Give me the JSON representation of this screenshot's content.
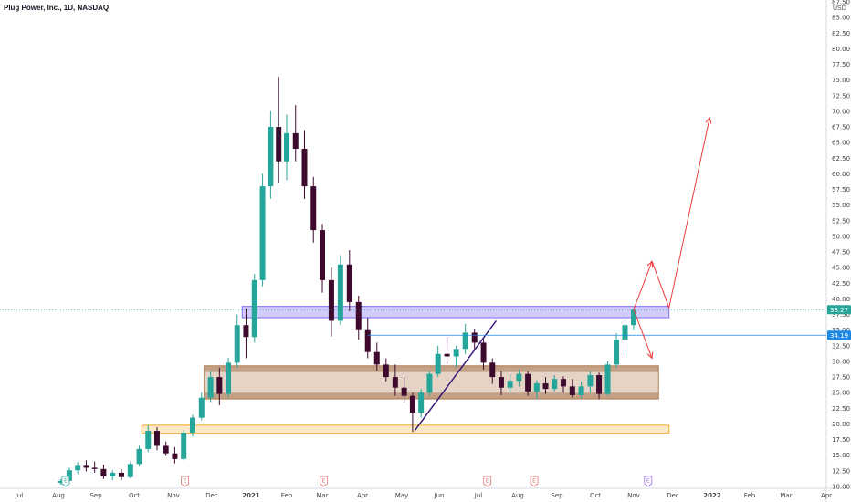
{
  "header": {
    "title": "Plug Power, Inc., 1D, NASDAQ",
    "currency": "USD"
  },
  "colors": {
    "up": "#26a69a",
    "down": "#3d0a2e",
    "axis_text": "#444444",
    "box_upper": "#7b6cf6",
    "box_mid": "#b5835a",
    "box_low": "#f5a623",
    "trend_line": "#3a1a78",
    "projection": "#ef3b3b",
    "price_line_last": "#1e88e5"
  },
  "chart_data": {
    "type": "candlestick",
    "title": "Plug Power, Inc., 1D, NASDAQ",
    "ylim": [
      10.0,
      87.5
    ],
    "y_ticks": [
      "87.50",
      "85.00",
      "82.50",
      "80.00",
      "77.50",
      "75.00",
      "72.50",
      "70.00",
      "67.50",
      "65.00",
      "62.50",
      "60.00",
      "57.50",
      "55.00",
      "52.50",
      "50.00",
      "47.50",
      "45.00",
      "42.50",
      "40.00",
      "37.50",
      "35.00",
      "32.50",
      "30.00",
      "27.50",
      "25.00",
      "22.50",
      "20.00",
      "17.50",
      "15.00",
      "12.50",
      "10.00"
    ],
    "x_ticks": [
      "Jul",
      "Aug",
      "Sep",
      "Oct",
      "Nov",
      "Dec",
      "2021",
      "Feb",
      "Mar",
      "Apr",
      "May",
      "Jun",
      "Jul",
      "Aug",
      "Sep",
      "Oct",
      "Nov",
      "Dec",
      "2022",
      "Feb",
      "Mar",
      "Apr"
    ],
    "x_tick_index": [
      0,
      1,
      2,
      3,
      4,
      5,
      6,
      7,
      8,
      9,
      10,
      11,
      12,
      13,
      14,
      15,
      16,
      17,
      18,
      19,
      20,
      21
    ],
    "price_labels": [
      {
        "text": "38.27",
        "value": 38.27,
        "color": "#26a69a"
      },
      {
        "text": "34.19",
        "value": 34.19,
        "color": "#1e88e5"
      }
    ],
    "zones": [
      {
        "name": "resistance-zone",
        "from": "2020-12-25",
        "to": "2021-11-28",
        "low": 37.0,
        "high": 38.8
      },
      {
        "name": "consolidation-zone",
        "from": "2020-11-25",
        "to": "2021-11-20",
        "low": 24.0,
        "high": 29.3
      },
      {
        "name": "support-zone",
        "from": "2020-10-07",
        "to": "2021-11-28",
        "low": 18.5,
        "high": 19.8
      }
    ],
    "trendline": {
      "from_date": "2021-05-12",
      "from_value": 19.0,
      "to_date": "2021-07-15",
      "to_value": 36.5
    },
    "projection": [
      {
        "date": "2021-11-01",
        "value": 38.3
      },
      {
        "date": "2021-11-15",
        "value": 46.0
      },
      {
        "date": "2021-11-28",
        "value": 38.6
      },
      {
        "date": "2021-12-30",
        "value": 69.0
      }
    ],
    "projection_down": [
      {
        "date": "2021-11-01",
        "value": 38.3
      },
      {
        "date": "2021-11-15",
        "value": 30.5
      }
    ],
    "events": [
      {
        "date": "2020-08-07",
        "label": "E",
        "kind": "earnings-past"
      },
      {
        "date": "2020-11-10",
        "label": "E",
        "kind": "earnings"
      },
      {
        "date": "2021-03-02",
        "label": "E",
        "kind": "earnings"
      },
      {
        "date": "2021-07-08",
        "label": "E",
        "kind": "earnings"
      },
      {
        "date": "2021-08-14",
        "label": "E",
        "kind": "earnings"
      },
      {
        "date": "2021-11-12",
        "label": "E",
        "kind": "earnings-future"
      }
    ],
    "series": [
      {
        "date": "2020-08-03",
        "open": 10.6,
        "high": 11.2,
        "low": 10.3,
        "close": 10.9
      },
      {
        "date": "2020-08-10",
        "open": 10.9,
        "high": 13.0,
        "low": 10.7,
        "close": 12.6
      },
      {
        "date": "2020-08-17",
        "open": 12.6,
        "high": 13.9,
        "low": 12.0,
        "close": 13.3
      },
      {
        "date": "2020-08-24",
        "open": 13.3,
        "high": 14.2,
        "low": 12.4,
        "close": 13.0
      },
      {
        "date": "2020-08-31",
        "open": 13.0,
        "high": 14.0,
        "low": 12.2,
        "close": 12.8
      },
      {
        "date": "2020-09-07",
        "open": 12.8,
        "high": 13.5,
        "low": 11.2,
        "close": 11.6
      },
      {
        "date": "2020-09-14",
        "open": 11.6,
        "high": 12.6,
        "low": 11.0,
        "close": 12.2
      },
      {
        "date": "2020-09-21",
        "open": 12.2,
        "high": 12.8,
        "low": 11.0,
        "close": 11.5
      },
      {
        "date": "2020-09-28",
        "open": 11.5,
        "high": 14.0,
        "low": 11.3,
        "close": 13.6
      },
      {
        "date": "2020-10-05",
        "open": 13.6,
        "high": 16.5,
        "low": 13.2,
        "close": 16.0
      },
      {
        "date": "2020-10-12",
        "open": 16.0,
        "high": 19.8,
        "low": 15.5,
        "close": 18.9
      },
      {
        "date": "2020-10-19",
        "open": 18.9,
        "high": 19.5,
        "low": 15.8,
        "close": 16.5
      },
      {
        "date": "2020-10-26",
        "open": 16.5,
        "high": 17.2,
        "low": 14.9,
        "close": 15.3
      },
      {
        "date": "2020-11-02",
        "open": 15.3,
        "high": 16.3,
        "low": 13.7,
        "close": 14.4
      },
      {
        "date": "2020-11-09",
        "open": 14.4,
        "high": 19.0,
        "low": 14.2,
        "close": 18.6
      },
      {
        "date": "2020-11-16",
        "open": 18.6,
        "high": 21.5,
        "low": 18.0,
        "close": 21.0
      },
      {
        "date": "2020-11-23",
        "open": 21.0,
        "high": 25.0,
        "low": 20.6,
        "close": 24.2
      },
      {
        "date": "2020-11-30",
        "open": 24.2,
        "high": 28.5,
        "low": 23.5,
        "close": 27.5
      },
      {
        "date": "2020-12-07",
        "open": 27.5,
        "high": 29.0,
        "low": 23.0,
        "close": 24.8
      },
      {
        "date": "2020-12-14",
        "open": 24.8,
        "high": 30.6,
        "low": 24.3,
        "close": 29.8
      },
      {
        "date": "2020-12-21",
        "open": 29.8,
        "high": 37.5,
        "low": 29.0,
        "close": 35.8
      },
      {
        "date": "2020-12-28",
        "open": 35.8,
        "high": 38.5,
        "low": 30.5,
        "close": 33.9
      },
      {
        "date": "2021-01-04",
        "open": 33.9,
        "high": 44.0,
        "low": 33.0,
        "close": 43.0
      },
      {
        "date": "2021-01-11",
        "open": 43.0,
        "high": 60.0,
        "low": 42.0,
        "close": 58.0
      },
      {
        "date": "2021-01-18",
        "open": 58.0,
        "high": 70.0,
        "low": 56.0,
        "close": 67.5
      },
      {
        "date": "2021-01-25",
        "open": 67.5,
        "high": 75.5,
        "low": 58.5,
        "close": 62.0
      },
      {
        "date": "2021-02-01",
        "open": 62.0,
        "high": 69.5,
        "low": 59.0,
        "close": 66.5
      },
      {
        "date": "2021-02-08",
        "open": 66.5,
        "high": 71.0,
        "low": 62.0,
        "close": 64.0
      },
      {
        "date": "2021-02-15",
        "open": 64.0,
        "high": 67.0,
        "low": 56.0,
        "close": 58.0
      },
      {
        "date": "2021-02-22",
        "open": 58.0,
        "high": 59.5,
        "low": 49.0,
        "close": 51.0
      },
      {
        "date": "2021-03-01",
        "open": 51.0,
        "high": 52.0,
        "low": 41.0,
        "close": 43.0
      },
      {
        "date": "2021-03-08",
        "open": 43.0,
        "high": 45.0,
        "low": 34.0,
        "close": 36.5
      },
      {
        "date": "2021-03-15",
        "open": 36.5,
        "high": 47.0,
        "low": 35.8,
        "close": 45.5
      },
      {
        "date": "2021-03-22",
        "open": 45.5,
        "high": 47.8,
        "low": 38.0,
        "close": 39.5
      },
      {
        "date": "2021-03-29",
        "open": 39.5,
        "high": 40.5,
        "low": 33.5,
        "close": 35.0
      },
      {
        "date": "2021-04-05",
        "open": 35.0,
        "high": 37.0,
        "low": 30.5,
        "close": 31.5
      },
      {
        "date": "2021-04-12",
        "open": 31.5,
        "high": 33.0,
        "low": 28.5,
        "close": 29.5
      },
      {
        "date": "2021-04-19",
        "open": 29.5,
        "high": 30.5,
        "low": 26.8,
        "close": 27.5
      },
      {
        "date": "2021-04-26",
        "open": 27.5,
        "high": 29.5,
        "low": 24.5,
        "close": 25.8
      },
      {
        "date": "2021-05-03",
        "open": 25.8,
        "high": 27.5,
        "low": 23.5,
        "close": 24.5
      },
      {
        "date": "2021-05-10",
        "open": 24.5,
        "high": 25.0,
        "low": 18.7,
        "close": 21.8
      },
      {
        "date": "2021-05-17",
        "open": 21.8,
        "high": 25.6,
        "low": 21.0,
        "close": 25.0
      },
      {
        "date": "2021-05-24",
        "open": 25.0,
        "high": 28.5,
        "low": 24.5,
        "close": 28.0
      },
      {
        "date": "2021-05-31",
        "open": 28.0,
        "high": 32.5,
        "low": 27.5,
        "close": 31.2
      },
      {
        "date": "2021-06-07",
        "open": 31.2,
        "high": 34.0,
        "low": 29.6,
        "close": 30.8
      },
      {
        "date": "2021-06-14",
        "open": 30.8,
        "high": 32.5,
        "low": 29.0,
        "close": 32.0
      },
      {
        "date": "2021-06-21",
        "open": 32.0,
        "high": 36.0,
        "low": 31.2,
        "close": 34.6
      },
      {
        "date": "2021-06-28",
        "open": 34.6,
        "high": 35.2,
        "low": 31.8,
        "close": 33.0
      },
      {
        "date": "2021-07-05",
        "open": 33.0,
        "high": 33.6,
        "low": 28.7,
        "close": 29.8
      },
      {
        "date": "2021-07-12",
        "open": 29.8,
        "high": 30.5,
        "low": 26.4,
        "close": 27.5
      },
      {
        "date": "2021-07-19",
        "open": 27.5,
        "high": 28.5,
        "low": 24.6,
        "close": 25.8
      },
      {
        "date": "2021-07-26",
        "open": 25.8,
        "high": 28.0,
        "low": 25.0,
        "close": 26.9
      },
      {
        "date": "2021-08-02",
        "open": 26.9,
        "high": 28.7,
        "low": 26.0,
        "close": 28.0
      },
      {
        "date": "2021-08-09",
        "open": 28.0,
        "high": 28.5,
        "low": 24.5,
        "close": 25.2
      },
      {
        "date": "2021-08-16",
        "open": 25.2,
        "high": 27.0,
        "low": 24.0,
        "close": 26.5
      },
      {
        "date": "2021-08-23",
        "open": 26.5,
        "high": 27.5,
        "low": 24.8,
        "close": 25.6
      },
      {
        "date": "2021-08-30",
        "open": 25.6,
        "high": 27.8,
        "low": 25.2,
        "close": 27.2
      },
      {
        "date": "2021-09-06",
        "open": 27.2,
        "high": 27.6,
        "low": 25.0,
        "close": 26.0
      },
      {
        "date": "2021-09-13",
        "open": 26.0,
        "high": 27.2,
        "low": 24.2,
        "close": 24.6
      },
      {
        "date": "2021-09-20",
        "open": 24.6,
        "high": 26.8,
        "low": 24.0,
        "close": 26.0
      },
      {
        "date": "2021-09-27",
        "open": 26.0,
        "high": 28.5,
        "low": 25.0,
        "close": 27.8
      },
      {
        "date": "2021-10-04",
        "open": 27.8,
        "high": 28.2,
        "low": 24.0,
        "close": 24.8
      },
      {
        "date": "2021-10-11",
        "open": 24.8,
        "high": 30.0,
        "low": 24.5,
        "close": 29.5
      },
      {
        "date": "2021-10-18",
        "open": 29.5,
        "high": 34.5,
        "low": 29.0,
        "close": 33.5
      },
      {
        "date": "2021-10-25",
        "open": 33.5,
        "high": 36.5,
        "low": 31.0,
        "close": 35.8
      },
      {
        "date": "2021-11-01",
        "open": 35.8,
        "high": 38.5,
        "low": 35.0,
        "close": 38.27
      }
    ]
  }
}
